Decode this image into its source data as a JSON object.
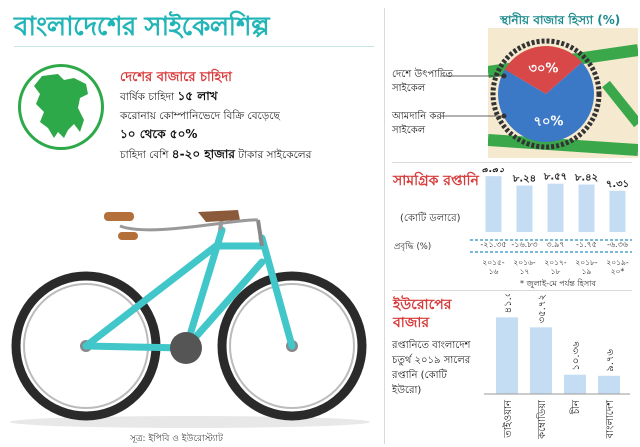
{
  "header": {
    "title": "বাংলাদেশের সাইকেলশিল্প"
  },
  "demand": {
    "heading": "দেশের বাজারে চাহিদা",
    "annual_prefix": "বার্ষিক চাহিদা ",
    "annual_value": "১৫ লাখ",
    "corona_line": "করোনায় কোম্পানিভেদে বিক্রি বেড়েছে",
    "growth_range": "১০ থেকে ৫০%",
    "price_prefix": "চাহিদা বেশি ",
    "price_value": "৪-২০ হাজার",
    "price_suffix": " টাকার সাইকেলের"
  },
  "source": "সূত্র: ইপিবি ও ইউরোস্ট্যাট",
  "colors": {
    "accent": "#21b5b7",
    "red": "#d83b3b",
    "green": "#2ea94a",
    "bar": "#c5ddf3",
    "pie_blue": "#3b79c6",
    "pie_red": "#d84848",
    "frame": "#3aa84a",
    "bike": "#41c6c9",
    "tire": "#2a2a2a",
    "seat": "#8a5a3a"
  },
  "chart_data": [
    {
      "type": "pie",
      "title": "স্থানীয় বাজার হিস্যা (%)",
      "slices": [
        {
          "name": "দেশে উৎপাদিত সাইকেল",
          "value": 30,
          "label": "৩০%"
        },
        {
          "name": "আমদানি করা সাইকেল",
          "value": 70,
          "label": "৭০%"
        }
      ]
    },
    {
      "type": "bar",
      "title": "সামগ্রিক রপ্তানি",
      "ylabel": "(কোটি ডলারে)",
      "categories": [
        "২০১৫-১৬",
        "২০১৬-১৭",
        "২০১৭-১৮",
        "২০১৮-১৯",
        "২০১৯-২০*"
      ],
      "values": [
        9.91,
        8.24,
        8.57,
        8.42,
        7.31
      ],
      "value_labels": [
        "৯.৯১",
        "৮.২৪",
        "৮.৫৭",
        "৮.৪২",
        "৭.৩১"
      ],
      "growth_label": "প্রবৃদ্ধি (%)",
      "growth_values": [
        "-২১.৩৫",
        "-১৬.৮৩",
        "৩.৯৭",
        "-১.৭৫",
        "-৬.৩৬"
      ],
      "note": "* জুলাই-মে পর্যন্ত হিসাব",
      "ylim": [
        0,
        11
      ]
    },
    {
      "type": "bar",
      "title": "ইউরোপের বাজার",
      "note": "রপ্তানিতে বাংলাদেশ চতুর্থ ২০১৯ সালের রপ্তানি (কোটি ইউরো)",
      "categories": [
        "তাইওয়ান",
        "কম্বোডিয়া",
        "চীন",
        "বাংলাদেশ"
      ],
      "values": [
        41.05,
        35.72,
        10.36,
        9.76
      ],
      "value_labels": [
        "৪১.০৫",
        "৩৫.৭২",
        "১০.৩৬",
        "৯.৭৬"
      ],
      "ylim": [
        0,
        45
      ]
    }
  ]
}
